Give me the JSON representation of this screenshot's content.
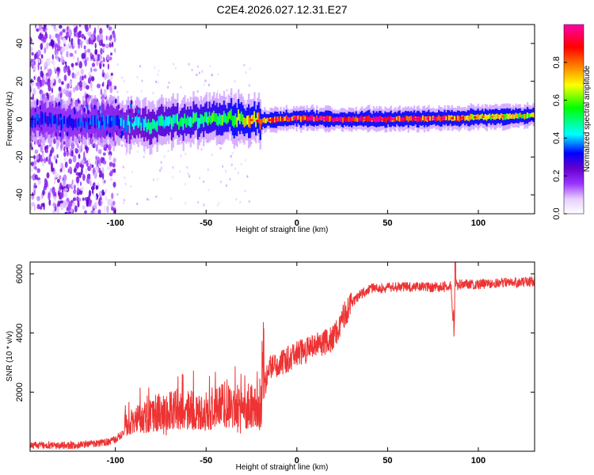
{
  "title": "C2E4.2026.027.12.31.E27",
  "chart_data": [
    {
      "type": "heatmap",
      "title": "C2E4.2026.027.12.31.E27",
      "xlabel": "Height of straight line (km)",
      "ylabel": "Frequency (Hz)",
      "xlim": [
        -147,
        131
      ],
      "ylim": [
        -50,
        50
      ],
      "xticks": [
        -100,
        -50,
        0,
        50,
        100
      ],
      "yticks": [
        -40,
        -20,
        0,
        20,
        40
      ],
      "colorbar": {
        "label": "Normalized spectral amplitude",
        "range": [
          0,
          1
        ],
        "ticks": [
          0.0,
          0.2,
          0.4,
          0.6,
          0.8
        ],
        "tick_labels": [
          "0.0",
          "0.2",
          "0.4",
          "0.6",
          "0.8"
        ],
        "colors": [
          "#ffffff",
          "#e6ccff",
          "#9933ff",
          "#6600cc",
          "#0000ff",
          "#00ffff",
          "#00ff00",
          "#ffff00",
          "#ff8000",
          "#ff0000",
          "#ff00aa"
        ]
      },
      "center_track": {
        "x": [
          -147,
          -120,
          -100,
          -80,
          -60,
          -40,
          -30,
          -20,
          -10,
          0,
          20,
          50,
          85,
          100,
          131
        ],
        "freq": [
          0,
          -2,
          -2,
          -3,
          -1,
          1,
          0,
          -1,
          0,
          0.5,
          0,
          0,
          0.5,
          1,
          2
        ],
        "peak_amplitude": [
          0.35,
          0.35,
          0.4,
          0.5,
          0.55,
          0.6,
          0.7,
          0.85,
          0.9,
          0.95,
          1.0,
          0.95,
          0.9,
          0.75,
          0.7
        ]
      }
    },
    {
      "type": "line",
      "xlabel": "Height of straight line (km)",
      "ylabel": "SNR (10 * v/v)",
      "xlim": [
        -147,
        131
      ],
      "ylim": [
        0,
        6400
      ],
      "xticks": [
        -100,
        -50,
        0,
        50,
        100
      ],
      "yticks": [
        2000,
        4000,
        6000
      ],
      "color": "#ee3333",
      "series": [
        {
          "name": "SNR",
          "x": [
            -147,
            -120,
            -105,
            -100,
            -95,
            -90,
            -80,
            -70,
            -60,
            -50,
            -40,
            -30,
            -25,
            -20,
            -18,
            -15,
            -10,
            -5,
            0,
            5,
            10,
            15,
            20,
            25,
            30,
            35,
            40,
            50,
            60,
            70,
            80,
            85,
            86,
            87,
            88,
            90,
            100,
            110,
            120,
            131
          ],
          "y": [
            200,
            200,
            300,
            400,
            650,
            700,
            900,
            950,
            1000,
            950,
            1100,
            1000,
            1100,
            900,
            2200,
            2800,
            3000,
            3100,
            3300,
            3400,
            3600,
            3700,
            3800,
            4500,
            5000,
            5300,
            5500,
            5550,
            5550,
            5550,
            5550,
            5600,
            4300,
            6000,
            5600,
            5650,
            5650,
            5700,
            5700,
            5750
          ]
        }
      ]
    }
  ]
}
